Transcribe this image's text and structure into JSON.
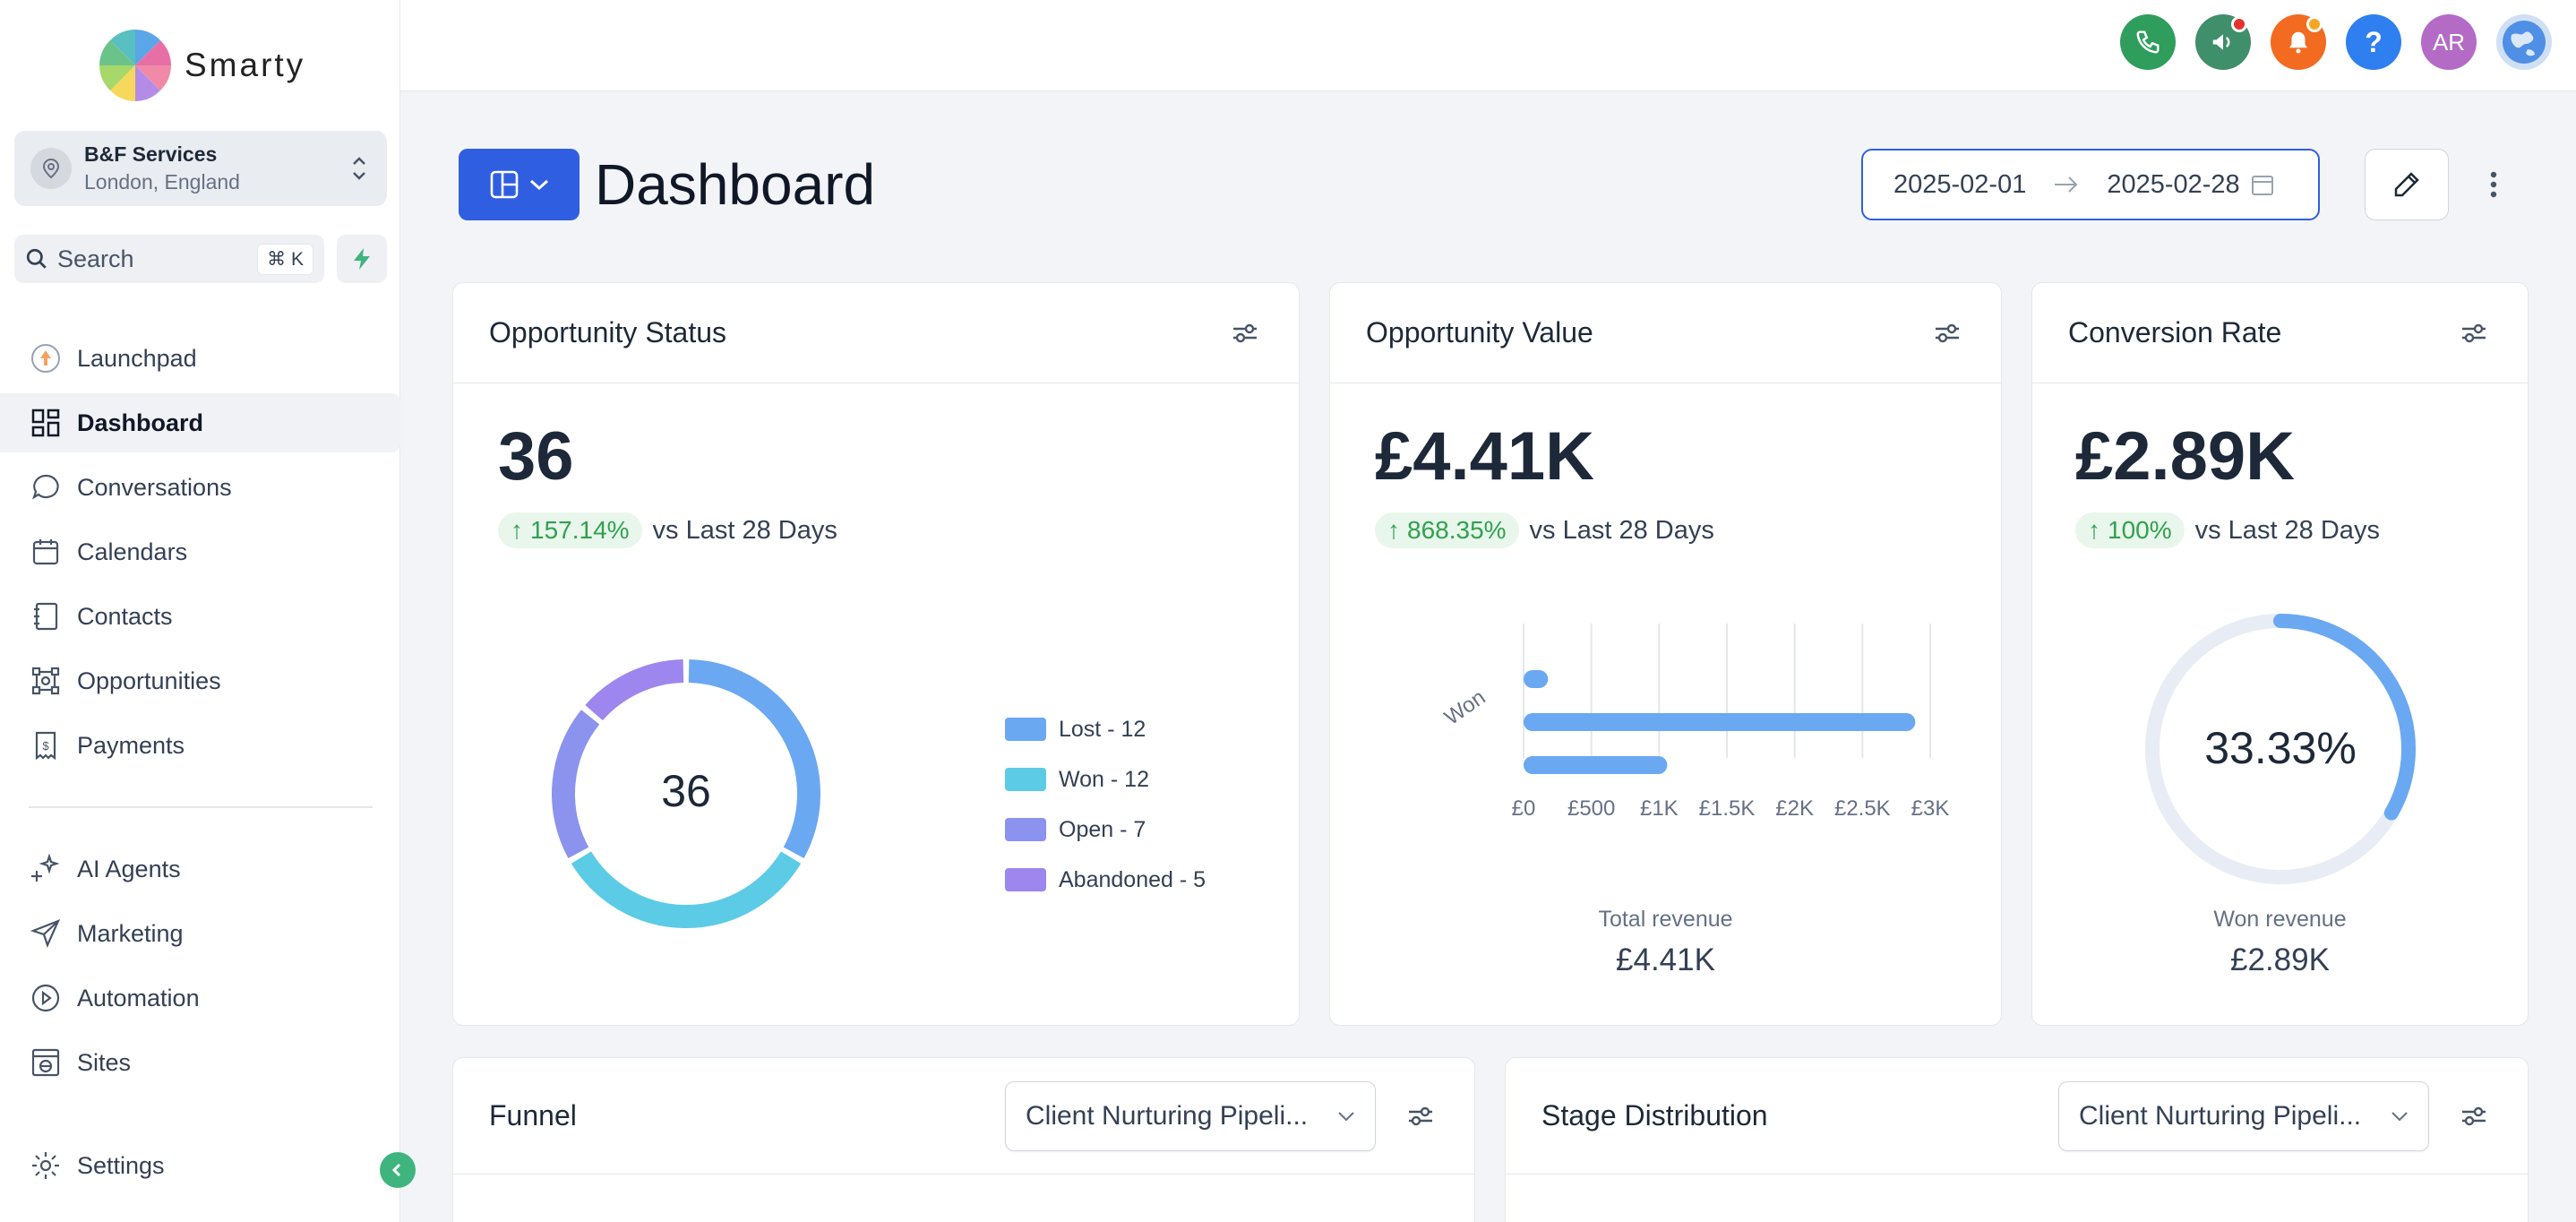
{
  "brand": {
    "name": "Smarty"
  },
  "org": {
    "name": "B&F Services",
    "location": "London, England"
  },
  "search": {
    "label": "Search",
    "shortcut": "⌘ K"
  },
  "nav": {
    "items": [
      {
        "label": "Launchpad",
        "icon": "launchpad-icon"
      },
      {
        "label": "Dashboard",
        "icon": "dashboard-icon",
        "active": true
      },
      {
        "label": "Conversations",
        "icon": "chat-bubble-icon"
      },
      {
        "label": "Calendars",
        "icon": "calendar-icon"
      },
      {
        "label": "Contacts",
        "icon": "contacts-book-icon"
      },
      {
        "label": "Opportunities",
        "icon": "opportunities-icon"
      },
      {
        "label": "Payments",
        "icon": "payments-icon"
      }
    ],
    "items2": [
      {
        "label": "AI Agents",
        "icon": "sparkles-icon"
      },
      {
        "label": "Marketing",
        "icon": "send-icon"
      },
      {
        "label": "Automation",
        "icon": "automation-icon"
      },
      {
        "label": "Sites",
        "icon": "globe-window-icon"
      }
    ],
    "settings": {
      "label": "Settings",
      "icon": "gear-icon"
    }
  },
  "topbar": {
    "avatar_initials": "AR"
  },
  "header": {
    "title": "Dashboard",
    "date_from": "2025-02-01",
    "date_to": "2025-02-28"
  },
  "cards": {
    "status": {
      "title": "Opportunity Status",
      "value": "36",
      "change": "157.14%",
      "vs": "vs Last 28 Days",
      "center": "36",
      "legend": [
        "Lost - 12",
        "Won - 12",
        "Open - 7",
        "Abandoned - 5"
      ]
    },
    "value": {
      "title": "Opportunity Value",
      "value": "£4.41K",
      "change": "868.35%",
      "vs": "vs Last 28 Days",
      "ylabel": "Won",
      "ticks": [
        "£0",
        "£500",
        "£1K",
        "£1.5K",
        "£2K",
        "£2.5K",
        "£3K"
      ],
      "footer_label": "Total revenue",
      "footer_value": "£4.41K"
    },
    "conversion": {
      "title": "Conversion Rate",
      "value": "£2.89K",
      "change": "100%",
      "vs": "vs Last 28 Days",
      "center": "33.33%",
      "footer_label": "Won revenue",
      "footer_value": "£2.89K"
    },
    "funnel": {
      "title": "Funnel",
      "pipeline": "Client Nurturing Pipeli..."
    },
    "stage": {
      "title": "Stage Distribution",
      "pipeline": "Client Nurturing Pipeli..."
    }
  },
  "colors": {
    "lost": "#6aa8f2",
    "won": "#5ccbe6",
    "open": "#8b93ee",
    "abandoned": "#9d86ee",
    "accent": "#2f5fe0"
  },
  "chart_data": [
    {
      "type": "pie",
      "categories": [
        "Lost",
        "Won",
        "Open",
        "Abandoned"
      ],
      "values": [
        12,
        12,
        7,
        5
      ],
      "title": "Opportunity Status"
    },
    {
      "type": "bar",
      "orientation": "horizontal",
      "categories": [
        "Won"
      ],
      "series": [
        {
          "values": [
            180
          ]
        },
        {
          "values": [
            2890
          ]
        },
        {
          "values": [
            1060
          ]
        }
      ],
      "xlim": [
        0,
        3000
      ],
      "title": "Opportunity Value",
      "ylabel": "Won"
    },
    {
      "type": "pie",
      "categories": [
        "Won",
        "Remaining"
      ],
      "values": [
        33.33,
        66.67
      ],
      "title": "Conversion Rate"
    }
  ]
}
